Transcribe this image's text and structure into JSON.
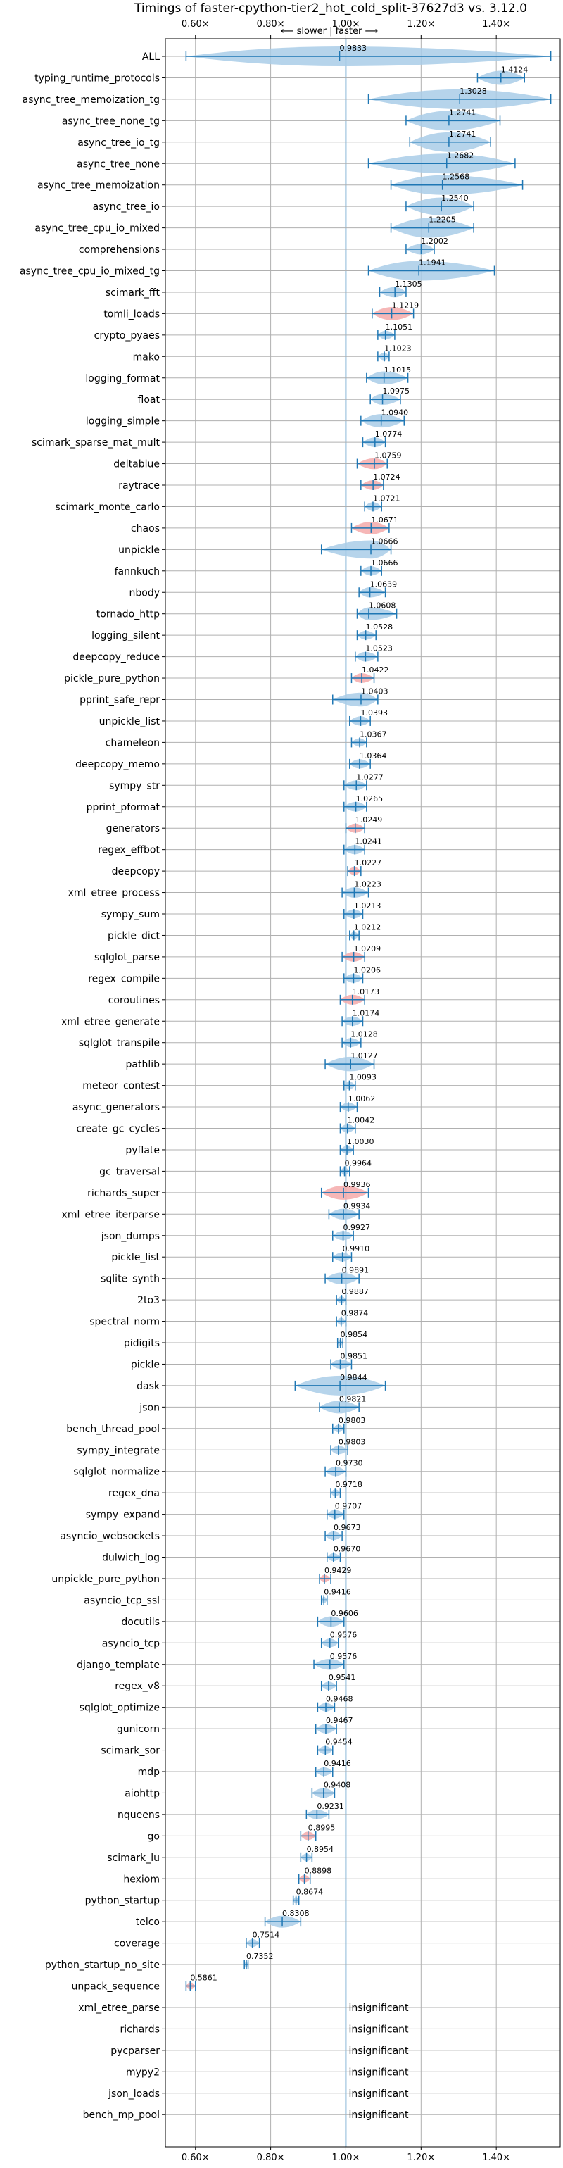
{
  "chart_data": {
    "type": "violin",
    "title": "Timings of faster-cpython-tier2_hot_cold_split-37627d3 vs. 3.12.0",
    "direction_label": "⟵ slower | faster ⟶",
    "xlim": [
      0.52,
      1.57
    ],
    "x_ticks": [
      0.6,
      0.8,
      1.0,
      1.2,
      1.4
    ],
    "x_tick_labels": [
      "0.60×",
      "0.80×",
      "1.00×",
      "1.20×",
      "1.40×"
    ],
    "grid": true,
    "colors": {
      "violin": "#a9cce8",
      "slower_violin": "#f4aaaa",
      "line": "#1f77b4",
      "grid": "#b0b0b0"
    },
    "insignificant_label": "insignificant",
    "benchmarks": [
      {
        "name": "ALL",
        "value": 0.9833,
        "label": "0.9833",
        "lo": 0.575,
        "hi": 1.545,
        "color": "blue"
      },
      {
        "name": "typing_runtime_protocols",
        "value": 1.4124,
        "label": "1.4124",
        "lo": 1.35,
        "hi": 1.475,
        "color": "blue"
      },
      {
        "name": "async_tree_memoization_tg",
        "value": 1.3028,
        "label": "1.3028",
        "lo": 1.06,
        "hi": 1.545,
        "color": "blue"
      },
      {
        "name": "async_tree_none_tg",
        "value": 1.2741,
        "label": "1.2741",
        "lo": 1.16,
        "hi": 1.41,
        "color": "blue"
      },
      {
        "name": "async_tree_io_tg",
        "value": 1.2741,
        "label": "1.2741",
        "lo": 1.17,
        "hi": 1.385,
        "color": "blue"
      },
      {
        "name": "async_tree_none",
        "value": 1.2682,
        "label": "1.2682",
        "lo": 1.06,
        "hi": 1.45,
        "color": "blue"
      },
      {
        "name": "async_tree_memoization",
        "value": 1.2568,
        "label": "1.2568",
        "lo": 1.12,
        "hi": 1.47,
        "color": "blue"
      },
      {
        "name": "async_tree_io",
        "value": 1.254,
        "label": "1.2540",
        "lo": 1.16,
        "hi": 1.34,
        "color": "blue"
      },
      {
        "name": "async_tree_cpu_io_mixed",
        "value": 1.2205,
        "label": "1.2205",
        "lo": 1.12,
        "hi": 1.34,
        "color": "blue"
      },
      {
        "name": "comprehensions",
        "value": 1.2002,
        "label": "1.2002",
        "lo": 1.16,
        "hi": 1.235,
        "color": "blue"
      },
      {
        "name": "async_tree_cpu_io_mixed_tg",
        "value": 1.1941,
        "label": "1.1941",
        "lo": 1.06,
        "hi": 1.395,
        "color": "blue"
      },
      {
        "name": "scimark_fft",
        "value": 1.1305,
        "label": "1.1305",
        "lo": 1.09,
        "hi": 1.16,
        "color": "blue"
      },
      {
        "name": "tomli_loads",
        "value": 1.1219,
        "label": "1.1219",
        "lo": 1.07,
        "hi": 1.18,
        "color": "red"
      },
      {
        "name": "crypto_pyaes",
        "value": 1.1051,
        "label": "1.1051",
        "lo": 1.085,
        "hi": 1.13,
        "color": "blue"
      },
      {
        "name": "mako",
        "value": 1.1023,
        "label": "1.1023",
        "lo": 1.085,
        "hi": 1.115,
        "color": "blue"
      },
      {
        "name": "logging_format",
        "value": 1.1015,
        "label": "1.1015",
        "lo": 1.055,
        "hi": 1.165,
        "color": "blue"
      },
      {
        "name": "float",
        "value": 1.0975,
        "label": "1.0975",
        "lo": 1.065,
        "hi": 1.145,
        "color": "blue"
      },
      {
        "name": "logging_simple",
        "value": 1.094,
        "label": "1.0940",
        "lo": 1.04,
        "hi": 1.155,
        "color": "blue"
      },
      {
        "name": "scimark_sparse_mat_mult",
        "value": 1.0774,
        "label": "1.0774",
        "lo": 1.045,
        "hi": 1.105,
        "color": "blue"
      },
      {
        "name": "deltablue",
        "value": 1.0759,
        "label": "1.0759",
        "lo": 1.03,
        "hi": 1.11,
        "color": "red"
      },
      {
        "name": "raytrace",
        "value": 1.0724,
        "label": "1.0724",
        "lo": 1.04,
        "hi": 1.1,
        "color": "red"
      },
      {
        "name": "scimark_monte_carlo",
        "value": 1.0721,
        "label": "1.0721",
        "lo": 1.05,
        "hi": 1.095,
        "color": "blue"
      },
      {
        "name": "chaos",
        "value": 1.0671,
        "label": "1.0671",
        "lo": 1.015,
        "hi": 1.115,
        "color": "red"
      },
      {
        "name": "unpickle",
        "value": 1.0666,
        "label": "1.0666",
        "lo": 0.935,
        "hi": 1.12,
        "color": "blue"
      },
      {
        "name": "fannkuch",
        "value": 1.0666,
        "label": "1.0666",
        "lo": 1.04,
        "hi": 1.095,
        "color": "blue"
      },
      {
        "name": "nbody",
        "value": 1.0639,
        "label": "1.0639",
        "lo": 1.035,
        "hi": 1.105,
        "color": "blue"
      },
      {
        "name": "tornado_http",
        "value": 1.0608,
        "label": "1.0608",
        "lo": 1.03,
        "hi": 1.135,
        "color": "blue"
      },
      {
        "name": "logging_silent",
        "value": 1.0528,
        "label": "1.0528",
        "lo": 1.03,
        "hi": 1.08,
        "color": "blue"
      },
      {
        "name": "deepcopy_reduce",
        "value": 1.0523,
        "label": "1.0523",
        "lo": 1.025,
        "hi": 1.085,
        "color": "blue"
      },
      {
        "name": "pickle_pure_python",
        "value": 1.0422,
        "label": "1.0422",
        "lo": 1.015,
        "hi": 1.075,
        "color": "red"
      },
      {
        "name": "pprint_safe_repr",
        "value": 1.0403,
        "label": "1.0403",
        "lo": 0.965,
        "hi": 1.085,
        "color": "blue"
      },
      {
        "name": "unpickle_list",
        "value": 1.0393,
        "label": "1.0393",
        "lo": 1.01,
        "hi": 1.065,
        "color": "blue"
      },
      {
        "name": "chameleon",
        "value": 1.0367,
        "label": "1.0367",
        "lo": 1.015,
        "hi": 1.055,
        "color": "blue"
      },
      {
        "name": "deepcopy_memo",
        "value": 1.0364,
        "label": "1.0364",
        "lo": 1.01,
        "hi": 1.065,
        "color": "blue"
      },
      {
        "name": "sympy_str",
        "value": 1.0277,
        "label": "1.0277",
        "lo": 0.995,
        "hi": 1.055,
        "color": "blue"
      },
      {
        "name": "pprint_pformat",
        "value": 1.0265,
        "label": "1.0265",
        "lo": 0.995,
        "hi": 1.055,
        "color": "blue"
      },
      {
        "name": "generators",
        "value": 1.0249,
        "label": "1.0249",
        "lo": 1.0,
        "hi": 1.05,
        "color": "red"
      },
      {
        "name": "regex_effbot",
        "value": 1.0241,
        "label": "1.0241",
        "lo": 0.995,
        "hi": 1.05,
        "color": "blue"
      },
      {
        "name": "deepcopy",
        "value": 1.0227,
        "label": "1.0227",
        "lo": 1.005,
        "hi": 1.04,
        "color": "red"
      },
      {
        "name": "xml_etree_process",
        "value": 1.0223,
        "label": "1.0223",
        "lo": 0.99,
        "hi": 1.06,
        "color": "blue"
      },
      {
        "name": "sympy_sum",
        "value": 1.0213,
        "label": "1.0213",
        "lo": 0.995,
        "hi": 1.045,
        "color": "blue"
      },
      {
        "name": "pickle_dict",
        "value": 1.0212,
        "label": "1.0212",
        "lo": 1.01,
        "hi": 1.035,
        "color": "blue"
      },
      {
        "name": "sqlglot_parse",
        "value": 1.0209,
        "label": "1.0209",
        "lo": 0.99,
        "hi": 1.05,
        "color": "red"
      },
      {
        "name": "regex_compile",
        "value": 1.0206,
        "label": "1.0206",
        "lo": 0.995,
        "hi": 1.045,
        "color": "blue"
      },
      {
        "name": "coroutines",
        "value": 1.0173,
        "label": "1.0173",
        "lo": 0.985,
        "hi": 1.05,
        "color": "red"
      },
      {
        "name": "xml_etree_generate",
        "value": 1.0174,
        "label": "1.0174",
        "lo": 0.99,
        "hi": 1.045,
        "color": "blue"
      },
      {
        "name": "sqlglot_transpile",
        "value": 1.0128,
        "label": "1.0128",
        "lo": 0.99,
        "hi": 1.04,
        "color": "blue"
      },
      {
        "name": "pathlib",
        "value": 1.0127,
        "label": "1.0127",
        "lo": 0.945,
        "hi": 1.075,
        "color": "blue"
      },
      {
        "name": "meteor_contest",
        "value": 1.0093,
        "label": "1.0093",
        "lo": 0.995,
        "hi": 1.025,
        "color": "blue"
      },
      {
        "name": "async_generators",
        "value": 1.0062,
        "label": "1.0062",
        "lo": 0.985,
        "hi": 1.03,
        "color": "blue"
      },
      {
        "name": "create_gc_cycles",
        "value": 1.0042,
        "label": "1.0042",
        "lo": 0.985,
        "hi": 1.025,
        "color": "blue"
      },
      {
        "name": "pyflate",
        "value": 1.003,
        "label": "1.0030",
        "lo": 0.985,
        "hi": 1.02,
        "color": "blue"
      },
      {
        "name": "gc_traversal",
        "value": 0.9964,
        "label": "0.9964",
        "lo": 0.985,
        "hi": 1.01,
        "color": "blue"
      },
      {
        "name": "richards_super",
        "value": 0.9936,
        "label": "0.9936",
        "lo": 0.935,
        "hi": 1.06,
        "color": "red"
      },
      {
        "name": "xml_etree_iterparse",
        "value": 0.9934,
        "label": "0.9934",
        "lo": 0.955,
        "hi": 1.035,
        "color": "blue"
      },
      {
        "name": "json_dumps",
        "value": 0.9927,
        "label": "0.9927",
        "lo": 0.965,
        "hi": 1.02,
        "color": "blue"
      },
      {
        "name": "pickle_list",
        "value": 0.991,
        "label": "0.9910",
        "lo": 0.965,
        "hi": 1.015,
        "color": "blue"
      },
      {
        "name": "sqlite_synth",
        "value": 0.9891,
        "label": "0.9891",
        "lo": 0.945,
        "hi": 1.035,
        "color": "blue"
      },
      {
        "name": "2to3",
        "value": 0.9887,
        "label": "0.9887",
        "lo": 0.975,
        "hi": 1.0,
        "color": "blue"
      },
      {
        "name": "spectral_norm",
        "value": 0.9874,
        "label": "0.9874",
        "lo": 0.975,
        "hi": 1.0,
        "color": "blue"
      },
      {
        "name": "pidigits",
        "value": 0.9854,
        "label": "0.9854",
        "lo": 0.978,
        "hi": 0.992,
        "color": "blue"
      },
      {
        "name": "pickle",
        "value": 0.9851,
        "label": "0.9851",
        "lo": 0.96,
        "hi": 1.015,
        "color": "blue"
      },
      {
        "name": "dask",
        "value": 0.9844,
        "label": "0.9844",
        "lo": 0.865,
        "hi": 1.105,
        "color": "blue"
      },
      {
        "name": "json",
        "value": 0.9821,
        "label": "0.9821",
        "lo": 0.93,
        "hi": 1.035,
        "color": "blue"
      },
      {
        "name": "bench_thread_pool",
        "value": 0.9803,
        "label": "0.9803",
        "lo": 0.965,
        "hi": 0.995,
        "color": "blue"
      },
      {
        "name": "sympy_integrate",
        "value": 0.9803,
        "label": "0.9803",
        "lo": 0.96,
        "hi": 1.005,
        "color": "blue"
      },
      {
        "name": "sqlglot_normalize",
        "value": 0.973,
        "label": "0.9730",
        "lo": 0.945,
        "hi": 1.0,
        "color": "blue"
      },
      {
        "name": "regex_dna",
        "value": 0.9718,
        "label": "0.9718",
        "lo": 0.96,
        "hi": 0.985,
        "color": "blue"
      },
      {
        "name": "sympy_expand",
        "value": 0.9707,
        "label": "0.9707",
        "lo": 0.95,
        "hi": 0.995,
        "color": "blue"
      },
      {
        "name": "asyncio_websockets",
        "value": 0.9673,
        "label": "0.9673",
        "lo": 0.945,
        "hi": 0.99,
        "color": "blue"
      },
      {
        "name": "dulwich_log",
        "value": 0.967,
        "label": "0.9670",
        "lo": 0.95,
        "hi": 0.985,
        "color": "blue"
      },
      {
        "name": "unpickle_pure_python",
        "value": 0.9429,
        "label": "0.9429",
        "lo": 0.93,
        "hi": 0.96,
        "color": "red"
      },
      {
        "name": "asyncio_tcp_ssl",
        "value": 0.9416,
        "label": "0.9416",
        "lo": 0.935,
        "hi": 0.95,
        "color": "blue"
      },
      {
        "name": "docutils",
        "value": 0.9606,
        "label": "0.9606",
        "lo": 0.925,
        "hi": 0.995,
        "color": "blue"
      },
      {
        "name": "asyncio_tcp",
        "value": 0.9576,
        "label": "0.9576",
        "lo": 0.935,
        "hi": 0.98,
        "color": "blue"
      },
      {
        "name": "django_template",
        "value": 0.9576,
        "label": "0.9576",
        "lo": 0.915,
        "hi": 0.995,
        "color": "blue"
      },
      {
        "name": "regex_v8",
        "value": 0.9541,
        "label": "0.9541",
        "lo": 0.935,
        "hi": 0.975,
        "color": "blue"
      },
      {
        "name": "sqlglot_optimize",
        "value": 0.9468,
        "label": "0.9468",
        "lo": 0.925,
        "hi": 0.97,
        "color": "blue"
      },
      {
        "name": "gunicorn",
        "value": 0.9467,
        "label": "0.9467",
        "lo": 0.92,
        "hi": 0.975,
        "color": "blue"
      },
      {
        "name": "scimark_sor",
        "value": 0.9454,
        "label": "0.9454",
        "lo": 0.925,
        "hi": 0.965,
        "color": "blue"
      },
      {
        "name": "mdp",
        "value": 0.9416,
        "label": "0.9416",
        "lo": 0.92,
        "hi": 0.965,
        "color": "blue"
      },
      {
        "name": "aiohttp",
        "value": 0.9408,
        "label": "0.9408",
        "lo": 0.91,
        "hi": 0.97,
        "color": "blue"
      },
      {
        "name": "nqueens",
        "value": 0.9231,
        "label": "0.9231",
        "lo": 0.895,
        "hi": 0.955,
        "color": "blue"
      },
      {
        "name": "go",
        "value": 0.8995,
        "label": "0.8995",
        "lo": 0.88,
        "hi": 0.92,
        "color": "red"
      },
      {
        "name": "scimark_lu",
        "value": 0.8954,
        "label": "0.8954",
        "lo": 0.88,
        "hi": 0.91,
        "color": "blue"
      },
      {
        "name": "hexiom",
        "value": 0.8898,
        "label": "0.8898",
        "lo": 0.875,
        "hi": 0.905,
        "color": "red"
      },
      {
        "name": "python_startup",
        "value": 0.8674,
        "label": "0.8674",
        "lo": 0.86,
        "hi": 0.875,
        "color": "blue"
      },
      {
        "name": "telco",
        "value": 0.8308,
        "label": "0.8308",
        "lo": 0.785,
        "hi": 0.88,
        "color": "blue"
      },
      {
        "name": "coverage",
        "value": 0.7514,
        "label": "0.7514",
        "lo": 0.735,
        "hi": 0.77,
        "color": "blue"
      },
      {
        "name": "python_startup_no_site",
        "value": 0.7352,
        "label": "0.7352",
        "lo": 0.73,
        "hi": 0.74,
        "color": "blue"
      },
      {
        "name": "unpack_sequence",
        "value": 0.5861,
        "label": "0.5861",
        "lo": 0.575,
        "hi": 0.6,
        "color": "red"
      },
      {
        "name": "xml_etree_parse",
        "value": null,
        "label": "",
        "insignificant": true
      },
      {
        "name": "richards",
        "value": null,
        "label": "",
        "insignificant": true
      },
      {
        "name": "pycparser",
        "value": null,
        "label": "",
        "insignificant": true
      },
      {
        "name": "mypy2",
        "value": null,
        "label": "",
        "insignificant": true
      },
      {
        "name": "json_loads",
        "value": null,
        "label": "",
        "insignificant": true
      },
      {
        "name": "bench_mp_pool",
        "value": null,
        "label": "",
        "insignificant": true
      }
    ]
  }
}
